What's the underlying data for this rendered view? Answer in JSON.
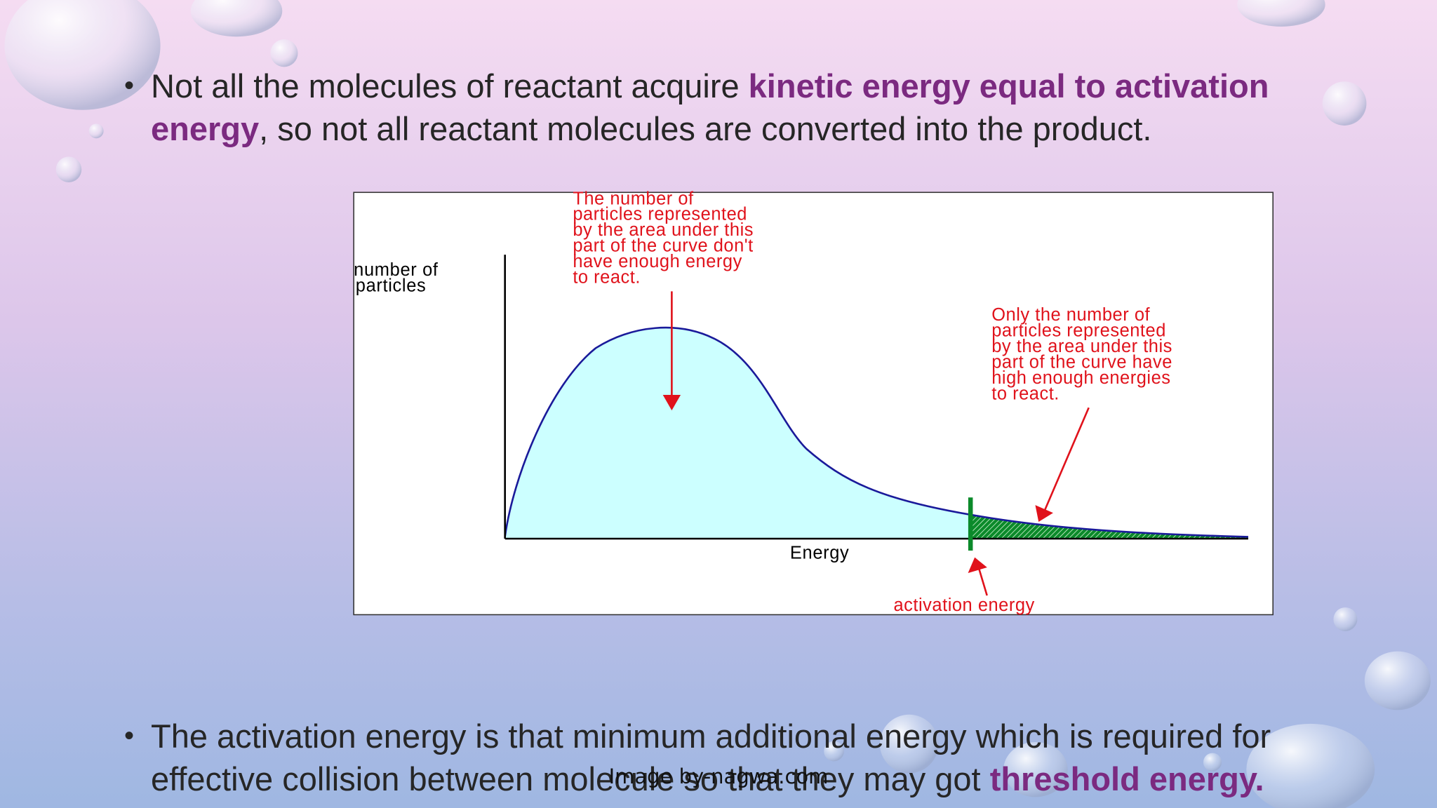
{
  "bullets": [
    {
      "segments": [
        {
          "text": "Not all the molecules of reactant acquire "
        },
        {
          "text": "kinetic energy equal to activation energy",
          "emphasis": true
        },
        {
          "text": ", so not all reactant molecules are converted into the product."
        }
      ]
    },
    {
      "segments": [
        {
          "text": "The activation energy is that minimum additional energy which is required for effective collision between molecule so that they may got "
        },
        {
          "text": "threshold energy.",
          "emphasis": true
        }
      ]
    }
  ],
  "diagram": {
    "y_axis_label": [
      "number of",
      "particles"
    ],
    "x_axis_label": "Energy",
    "annotation_left": [
      "The number of",
      "particles represented",
      "by the area under this",
      "part of the curve don't",
      "have enough energy",
      "to react."
    ],
    "annotation_right": [
      "Only the number of",
      "particles represented",
      "by the area under this",
      "part of the curve have",
      "high enough energies",
      "to react."
    ],
    "threshold_label": "activation energy"
  },
  "credit": "Image by-nagwa.com"
}
